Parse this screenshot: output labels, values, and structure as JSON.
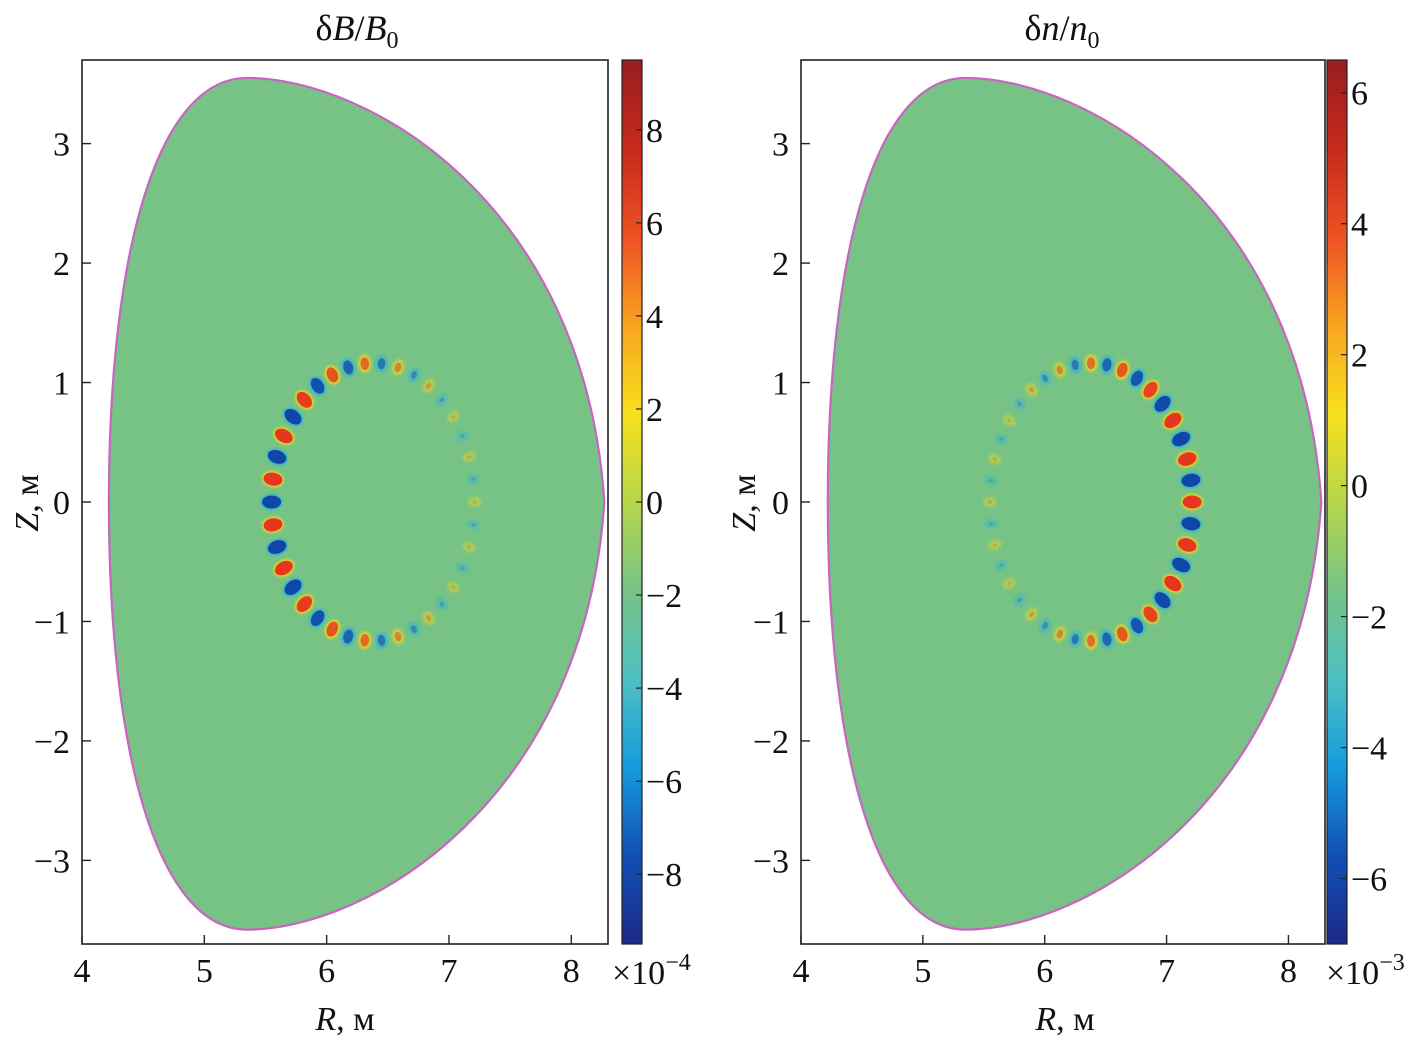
{
  "chart_data": [
    {
      "type": "heatmap",
      "title": "δB/B0",
      "title_parts": {
        "prefix": "δ",
        "num": "B",
        "sep": "/",
        "den": "B",
        "sub": "0"
      },
      "xlabel": "R, м",
      "ylabel": "Z, м",
      "xlabel_parts": {
        "var": "R",
        "unit": ", м"
      },
      "ylabel_parts": {
        "var": "Z",
        "unit": ", м"
      },
      "xlim": [
        4.0,
        8.3
      ],
      "ylim": [
        -3.7,
        3.7
      ],
      "xticks": [
        4,
        5,
        6,
        7,
        8
      ],
      "yticks": [
        -3,
        -2,
        -1,
        0,
        1,
        2,
        3
      ],
      "xtick_labels": [
        "4",
        "5",
        "6",
        "7",
        "8"
      ],
      "ytick_labels": [
        "−3",
        "−2",
        "−1",
        "0",
        "1",
        "2",
        "3"
      ],
      "boundary": {
        "r_in": 4.22,
        "r_out": 8.27,
        "r_top": 5.35,
        "z_top": 3.55,
        "z_bot": -3.58
      },
      "mode_ring": {
        "center_r": 6.38,
        "center_z": 0.0,
        "radius": 0.83,
        "n_blobs": 38,
        "strong_side": "left",
        "amplitude": 9.2
      },
      "colorbar": {
        "range": [
          -9.5,
          9.5
        ],
        "ticks": [
          -8,
          -6,
          -4,
          -2,
          0,
          2,
          4,
          6,
          8
        ],
        "tick_labels": [
          "−8",
          "−6",
          "−4",
          "−2",
          "0",
          "2",
          "4",
          "6",
          "8"
        ],
        "multiplier_base": "×10",
        "multiplier_exp": "−4"
      }
    },
    {
      "type": "heatmap",
      "title": "δn/n0",
      "title_parts": {
        "prefix": "δ",
        "num": "n",
        "sep": "/",
        "den": "n",
        "sub": "0"
      },
      "xlabel": "R, м",
      "ylabel": "Z, м",
      "xlabel_parts": {
        "var": "R",
        "unit": ", м"
      },
      "ylabel_parts": {
        "var": "Z",
        "unit": ", м"
      },
      "xlim": [
        4.0,
        8.3
      ],
      "ylim": [
        -3.7,
        3.7
      ],
      "xticks": [
        4,
        5,
        6,
        7,
        8
      ],
      "yticks": [
        -3,
        -2,
        -1,
        0,
        1,
        2,
        3
      ],
      "xtick_labels": [
        "4",
        "5",
        "6",
        "7",
        "8"
      ],
      "ytick_labels": [
        "−3",
        "−2",
        "−1",
        "0",
        "1",
        "2",
        "3"
      ],
      "boundary": {
        "r_in": 4.22,
        "r_out": 8.27,
        "r_top": 5.35,
        "z_top": 3.55,
        "z_bot": -3.58
      },
      "mode_ring": {
        "center_r": 6.38,
        "center_z": 0.0,
        "radius": 0.83,
        "n_blobs": 40,
        "strong_side": "right",
        "amplitude": 6.4
      },
      "colorbar": {
        "range": [
          -7.0,
          6.5
        ],
        "ticks": [
          -6,
          -4,
          -2,
          0,
          2,
          4,
          6
        ],
        "tick_labels": [
          "−6",
          "−4",
          "−2",
          "0",
          "2",
          "4",
          "6"
        ],
        "multiplier_base": "×10",
        "multiplier_exp": "−3"
      }
    }
  ],
  "colors": {
    "field_bg": "#77c386",
    "boundary": "#c865c0",
    "positive": "#e8351f",
    "negative": "#1046a8",
    "halo_pos": "#f5d915",
    "halo_neg": "#2eb2d8",
    "colormap": [
      "#1d2a86",
      "#1150b5",
      "#179bdc",
      "#4ec0c2",
      "#77c386",
      "#b6d64a",
      "#f6e01c",
      "#f8a421",
      "#ee5122",
      "#c62a1c",
      "#981e1e"
    ]
  }
}
